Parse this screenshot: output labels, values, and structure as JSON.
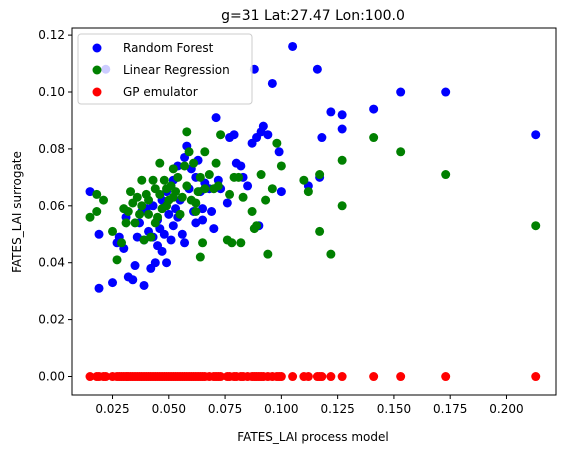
{
  "chart_data": {
    "type": "scatter",
    "title": "g=31 Lat:27.47 Lon:100.0",
    "xlabel": "FATES_LAI process model",
    "ylabel": "FATES_LAI surrogate",
    "xlim": [
      0.007,
      0.222
    ],
    "ylim": [
      -0.0065,
      0.1225
    ],
    "xticks": [
      "0.025",
      "0.050",
      "0.075",
      "0.100",
      "0.125",
      "0.150",
      "0.175",
      "0.200"
    ],
    "yticks": [
      "0.00",
      "0.02",
      "0.04",
      "0.06",
      "0.08",
      "0.10",
      "0.12"
    ],
    "grid": false,
    "legend_position": "top-left",
    "series": [
      {
        "name": "Random Forest",
        "color": "#0000ff",
        "points": [
          [
            0.015,
            0.065
          ],
          [
            0.019,
            0.05
          ],
          [
            0.019,
            0.031
          ],
          [
            0.022,
            0.108
          ],
          [
            0.025,
            0.033
          ],
          [
            0.027,
            0.047
          ],
          [
            0.028,
            0.049
          ],
          [
            0.03,
            0.045
          ],
          [
            0.031,
            0.056
          ],
          [
            0.032,
            0.035
          ],
          [
            0.034,
            0.034
          ],
          [
            0.035,
            0.039
          ],
          [
            0.036,
            0.049
          ],
          [
            0.037,
            0.054
          ],
          [
            0.038,
            0.058
          ],
          [
            0.039,
            0.032
          ],
          [
            0.039,
            0.048
          ],
          [
            0.04,
            0.059
          ],
          [
            0.041,
            0.051
          ],
          [
            0.042,
            0.038
          ],
          [
            0.043,
            0.049
          ],
          [
            0.043,
            0.06
          ],
          [
            0.044,
            0.04
          ],
          [
            0.045,
            0.046
          ],
          [
            0.045,
            0.055
          ],
          [
            0.046,
            0.052
          ],
          [
            0.047,
            0.062
          ],
          [
            0.047,
            0.044
          ],
          [
            0.048,
            0.05
          ],
          [
            0.049,
            0.04
          ],
          [
            0.049,
            0.065
          ],
          [
            0.05,
            0.057
          ],
          [
            0.051,
            0.048
          ],
          [
            0.052,
            0.053
          ],
          [
            0.052,
            0.069
          ],
          [
            0.053,
            0.059
          ],
          [
            0.054,
            0.074
          ],
          [
            0.054,
            0.056
          ],
          [
            0.055,
            0.062
          ],
          [
            0.056,
            0.05
          ],
          [
            0.057,
            0.077
          ],
          [
            0.057,
            0.047
          ],
          [
            0.058,
            0.081
          ],
          [
            0.059,
            0.066
          ],
          [
            0.06,
            0.073
          ],
          [
            0.061,
            0.058
          ],
          [
            0.062,
            0.054
          ],
          [
            0.062,
            0.07
          ],
          [
            0.063,
            0.076
          ],
          [
            0.064,
            0.065
          ],
          [
            0.065,
            0.059
          ],
          [
            0.065,
            0.055
          ],
          [
            0.066,
            0.068
          ],
          [
            0.068,
            0.066
          ],
          [
            0.069,
            0.058
          ],
          [
            0.07,
            0.052
          ],
          [
            0.071,
            0.091
          ],
          [
            0.072,
            0.069
          ],
          [
            0.073,
            0.066
          ],
          [
            0.076,
            0.061
          ],
          [
            0.077,
            0.084
          ],
          [
            0.079,
            0.085
          ],
          [
            0.08,
            0.075
          ],
          [
            0.082,
            0.074
          ],
          [
            0.083,
            0.07
          ],
          [
            0.085,
            0.067
          ],
          [
            0.087,
            0.082
          ],
          [
            0.088,
            0.108
          ],
          [
            0.089,
            0.084
          ],
          [
            0.09,
            0.053
          ],
          [
            0.091,
            0.086
          ],
          [
            0.092,
            0.088
          ],
          [
            0.094,
            0.085
          ],
          [
            0.096,
            0.103
          ],
          [
            0.099,
            0.079
          ],
          [
            0.1,
            0.065
          ],
          [
            0.105,
            0.116
          ],
          [
            0.112,
            0.067
          ],
          [
            0.116,
            0.108
          ],
          [
            0.117,
            0.07
          ],
          [
            0.118,
            0.084
          ],
          [
            0.122,
            0.093
          ],
          [
            0.127,
            0.092
          ],
          [
            0.127,
            0.087
          ],
          [
            0.141,
            0.094
          ],
          [
            0.153,
            0.1
          ],
          [
            0.173,
            0.1
          ],
          [
            0.213,
            0.085
          ]
        ]
      },
      {
        "name": "Linear Regression",
        "color": "#008000",
        "points": [
          [
            0.015,
            0.056
          ],
          [
            0.018,
            0.058
          ],
          [
            0.018,
            0.064
          ],
          [
            0.021,
            0.062
          ],
          [
            0.025,
            0.051
          ],
          [
            0.027,
            0.041
          ],
          [
            0.029,
            0.047
          ],
          [
            0.03,
            0.059
          ],
          [
            0.031,
            0.054
          ],
          [
            0.032,
            0.058
          ],
          [
            0.033,
            0.065
          ],
          [
            0.034,
            0.061
          ],
          [
            0.035,
            0.054
          ],
          [
            0.036,
            0.063
          ],
          [
            0.037,
            0.057
          ],
          [
            0.038,
            0.069
          ],
          [
            0.038,
            0.06
          ],
          [
            0.039,
            0.048
          ],
          [
            0.04,
            0.064
          ],
          [
            0.041,
            0.057
          ],
          [
            0.041,
            0.062
          ],
          [
            0.042,
            0.049
          ],
          [
            0.043,
            0.069
          ],
          [
            0.044,
            0.054
          ],
          [
            0.044,
            0.066
          ],
          [
            0.045,
            0.056
          ],
          [
            0.046,
            0.064
          ],
          [
            0.046,
            0.075
          ],
          [
            0.047,
            0.059
          ],
          [
            0.048,
            0.069
          ],
          [
            0.049,
            0.066
          ],
          [
            0.049,
            0.06
          ],
          [
            0.05,
            0.062
          ],
          [
            0.051,
            0.067
          ],
          [
            0.052,
            0.073
          ],
          [
            0.052,
            0.063
          ],
          [
            0.053,
            0.065
          ],
          [
            0.054,
            0.07
          ],
          [
            0.055,
            0.057
          ],
          [
            0.056,
            0.063
          ],
          [
            0.057,
            0.074
          ],
          [
            0.058,
            0.086
          ],
          [
            0.058,
            0.067
          ],
          [
            0.059,
            0.079
          ],
          [
            0.06,
            0.062
          ],
          [
            0.061,
            0.075
          ],
          [
            0.062,
            0.058
          ],
          [
            0.062,
            0.061
          ],
          [
            0.063,
            0.065
          ],
          [
            0.064,
            0.042
          ],
          [
            0.064,
            0.07
          ],
          [
            0.065,
            0.047
          ],
          [
            0.066,
            0.066
          ],
          [
            0.066,
            0.079
          ],
          [
            0.068,
            0.071
          ],
          [
            0.07,
            0.066
          ],
          [
            0.071,
            0.075
          ],
          [
            0.072,
            0.067
          ],
          [
            0.073,
            0.085
          ],
          [
            0.076,
            0.048
          ],
          [
            0.077,
            0.064
          ],
          [
            0.078,
            0.047
          ],
          [
            0.079,
            0.07
          ],
          [
            0.081,
            0.07
          ],
          [
            0.082,
            0.047
          ],
          [
            0.083,
            0.063
          ],
          [
            0.087,
            0.058
          ],
          [
            0.088,
            0.052
          ],
          [
            0.089,
            0.053
          ],
          [
            0.091,
            0.071
          ],
          [
            0.093,
            0.062
          ],
          [
            0.094,
            0.043
          ],
          [
            0.096,
            0.066
          ],
          [
            0.098,
            0.082
          ],
          [
            0.1,
            0.074
          ],
          [
            0.11,
            0.069
          ],
          [
            0.112,
            0.065
          ],
          [
            0.117,
            0.051
          ],
          [
            0.117,
            0.071
          ],
          [
            0.122,
            0.043
          ],
          [
            0.127,
            0.06
          ],
          [
            0.127,
            0.076
          ],
          [
            0.141,
            0.084
          ],
          [
            0.153,
            0.079
          ],
          [
            0.173,
            0.071
          ],
          [
            0.213,
            0.053
          ]
        ]
      },
      {
        "name": "GP emulator",
        "color": "#ff0000",
        "x": [
          0.015,
          0.018,
          0.019,
          0.021,
          0.022,
          0.025,
          0.027,
          0.028,
          0.029,
          0.03,
          0.031,
          0.032,
          0.033,
          0.034,
          0.035,
          0.036,
          0.037,
          0.038,
          0.039,
          0.04,
          0.041,
          0.042,
          0.043,
          0.044,
          0.045,
          0.046,
          0.047,
          0.048,
          0.049,
          0.05,
          0.051,
          0.052,
          0.053,
          0.054,
          0.055,
          0.056,
          0.057,
          0.058,
          0.059,
          0.06,
          0.061,
          0.062,
          0.063,
          0.064,
          0.065,
          0.066,
          0.068,
          0.07,
          0.071,
          0.072,
          0.073,
          0.076,
          0.077,
          0.079,
          0.08,
          0.082,
          0.083,
          0.085,
          0.087,
          0.088,
          0.089,
          0.09,
          0.091,
          0.092,
          0.094,
          0.096,
          0.098,
          0.099,
          0.1,
          0.105,
          0.11,
          0.112,
          0.116,
          0.117,
          0.118,
          0.122,
          0.127,
          0.141,
          0.153,
          0.173,
          0.213
        ],
        "y_constant": 0.0
      }
    ]
  }
}
